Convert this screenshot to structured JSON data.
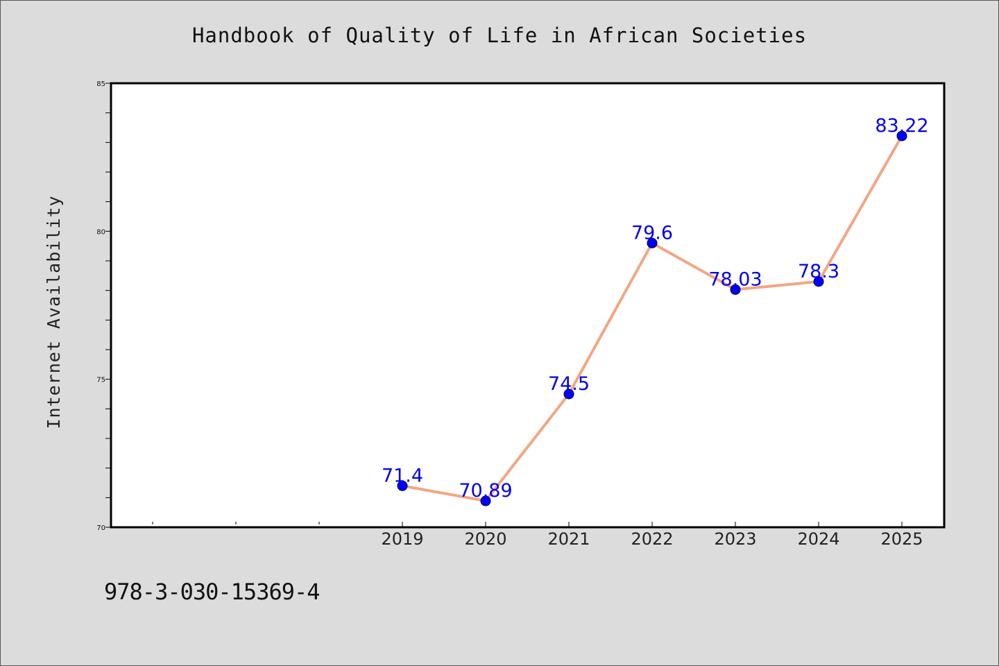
{
  "title": "Handbook of Quality of Life in African Societies",
  "isbn": "978-3-030-15369-4",
  "colors": {
    "background": "#dcdcdc",
    "plot_background": "#ffffff",
    "line": "#f4a582",
    "marker": "#0000ff",
    "label": "#0000ee"
  },
  "chart_data": {
    "type": "line",
    "x": [
      "2019",
      "2020",
      "2021",
      "2022",
      "2023",
      "2024",
      "2025"
    ],
    "series": [
      {
        "values": [
          71.4,
          70.89,
          74.5,
          79.6,
          78.03,
          78.3,
          83.22
        ],
        "labels": [
          "71.4",
          "70.89",
          "74.5",
          "79.6",
          "78.03",
          "78.3",
          "83.22"
        ]
      }
    ],
    "xlabel": "",
    "ylabel": "Internet Availability",
    "ylim": [
      70,
      85
    ],
    "yticks": [
      "70",
      "75",
      "80",
      "85"
    ],
    "grid": false,
    "legend": "none"
  }
}
